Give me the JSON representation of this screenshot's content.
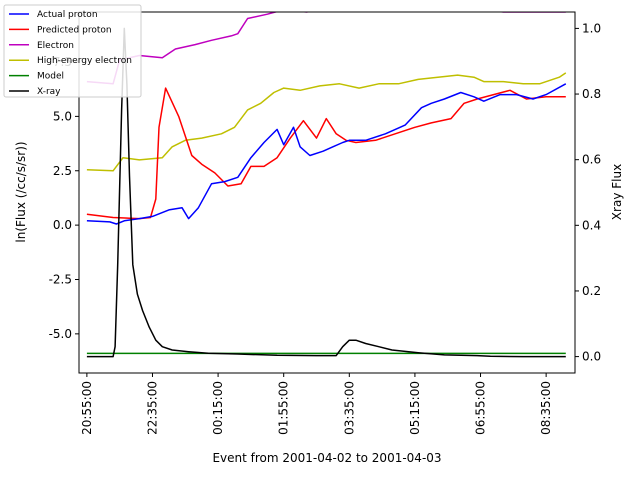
{
  "chart_data": {
    "type": "line",
    "xlabel": "Event from 2001-04-02 to 2001-04-03",
    "ylabel": "ln(Flux (/cc/s/sr))",
    "y2label": "Xray Flux",
    "xlim": [
      "2001-04-02 20:43",
      "2001-04-03 09:19"
    ],
    "ylim": [
      -6.8,
      9.8
    ],
    "y2lim": [
      -0.05,
      1.05
    ],
    "x_ticks": [
      "20:55:00",
      "22:35:00",
      "00:15:00",
      "01:55:00",
      "03:35:00",
      "05:15:00",
      "06:55:00",
      "08:35:00"
    ],
    "y_ticks": [
      "-5.0",
      "-2.5",
      "0.0",
      "2.5",
      "5.0",
      "7.5"
    ],
    "y2_ticks": [
      "0.0",
      "0.2",
      "0.4",
      "0.6",
      "0.8",
      "1.0"
    ],
    "legend_placement": "top-left",
    "series": [
      {
        "name": "Actual proton",
        "color": "#0000ff",
        "axis": "left",
        "x": [
          "2001-04-02 20:55",
          "2001-04-02 21:30",
          "2001-04-02 21:40",
          "2001-04-02 21:52",
          "2001-04-02 22:15",
          "2001-04-02 22:35",
          "2001-04-02 23:00",
          "2001-04-02 23:20",
          "2001-04-02 23:30",
          "2001-04-02 23:45",
          "2001-04-03 00:05",
          "2001-04-03 00:25",
          "2001-04-03 00:45",
          "2001-04-03 01:05",
          "2001-04-03 01:25",
          "2001-04-03 01:45",
          "2001-04-03 01:55",
          "2001-04-03 02:10",
          "2001-04-03 02:20",
          "2001-04-03 02:35",
          "2001-04-03 02:55",
          "2001-04-03 03:10",
          "2001-04-03 03:25",
          "2001-04-03 03:35",
          "2001-04-03 04:00",
          "2001-04-03 04:30",
          "2001-04-03 05:00",
          "2001-04-03 05:25",
          "2001-04-03 05:40",
          "2001-04-03 06:00",
          "2001-04-03 06:25",
          "2001-04-03 06:45",
          "2001-04-03 07:00",
          "2001-04-03 07:25",
          "2001-04-03 07:50",
          "2001-04-03 08:15",
          "2001-04-03 08:35",
          "2001-04-03 09:05"
        ],
        "values": [
          0.2,
          0.15,
          0.05,
          0.2,
          0.3,
          0.4,
          0.7,
          0.8,
          0.3,
          0.8,
          1.9,
          2.0,
          2.2,
          3.1,
          3.8,
          4.4,
          3.7,
          4.5,
          3.6,
          3.2,
          3.4,
          3.6,
          3.8,
          3.9,
          3.9,
          4.2,
          4.6,
          5.4,
          5.6,
          5.8,
          6.1,
          5.9,
          5.7,
          6.0,
          6.0,
          5.8,
          6.0,
          6.5
        ]
      },
      {
        "name": "Predicted proton",
        "color": "#ff0000",
        "axis": "left",
        "x": [
          "2001-04-02 20:55",
          "2001-04-02 21:35",
          "2001-04-02 22:15",
          "2001-04-02 22:32",
          "2001-04-02 22:40",
          "2001-04-02 22:45",
          "2001-04-02 22:55",
          "2001-04-02 23:15",
          "2001-04-02 23:35",
          "2001-04-02 23:50",
          "2001-04-03 00:10",
          "2001-04-03 00:30",
          "2001-04-03 00:50",
          "2001-04-03 01:05",
          "2001-04-03 01:25",
          "2001-04-03 01:45",
          "2001-04-03 02:05",
          "2001-04-03 02:25",
          "2001-04-03 02:45",
          "2001-04-03 03:00",
          "2001-04-03 03:15",
          "2001-04-03 03:30",
          "2001-04-03 03:45",
          "2001-04-03 04:15",
          "2001-04-03 04:45",
          "2001-04-03 05:15",
          "2001-04-03 05:40",
          "2001-04-03 06:10",
          "2001-04-03 06:30",
          "2001-04-03 06:50",
          "2001-04-03 07:15",
          "2001-04-03 07:40",
          "2001-04-03 08:05",
          "2001-04-03 08:35",
          "2001-04-03 09:05"
        ],
        "values": [
          0.5,
          0.35,
          0.3,
          0.35,
          1.2,
          4.5,
          6.3,
          5.0,
          3.2,
          2.8,
          2.4,
          1.8,
          1.9,
          2.7,
          2.7,
          3.1,
          4.0,
          4.8,
          4.0,
          4.9,
          4.2,
          3.9,
          3.8,
          3.9,
          4.2,
          4.5,
          4.7,
          4.9,
          5.6,
          5.8,
          6.0,
          6.2,
          5.8,
          5.9,
          5.9
        ]
      },
      {
        "name": "Electron",
        "color": "#bf00bf",
        "axis": "left",
        "x": [
          "2001-04-02 20:55",
          "2001-04-02 21:35",
          "2001-04-02 21:45",
          "2001-04-02 22:15",
          "2001-04-02 22:50",
          "2001-04-02 23:10",
          "2001-04-02 23:40",
          "2001-04-03 00:05",
          "2001-04-03 00:35",
          "2001-04-03 00:45",
          "2001-04-03 01:00",
          "2001-04-03 01:30",
          "2001-04-03 01:55",
          "2001-04-03 02:30",
          "2001-04-03 03:00",
          "2001-04-03 03:30",
          "2001-04-03 04:00",
          "2001-04-03 04:30",
          "2001-04-03 05:00",
          "2001-04-03 05:30",
          "2001-04-03 06:00",
          "2001-04-03 06:30",
          "2001-04-03 07:00",
          "2001-04-03 07:30",
          "2001-04-03 08:00",
          "2001-04-03 08:35",
          "2001-04-03 09:05"
        ],
        "values": [
          6.6,
          6.5,
          7.6,
          7.8,
          7.7,
          8.1,
          8.3,
          8.5,
          8.7,
          8.8,
          9.5,
          9.7,
          9.9,
          9.8,
          10.0,
          10.0,
          9.9,
          10.1,
          10.0,
          9.9,
          9.9,
          10.0,
          9.9,
          9.8,
          9.8,
          9.8,
          9.8
        ]
      },
      {
        "name": "High-energy electron",
        "color": "#bfbf00",
        "axis": "left",
        "x": [
          "2001-04-02 20:55",
          "2001-04-02 21:35",
          "2001-04-02 21:50",
          "2001-04-02 22:15",
          "2001-04-02 22:50",
          "2001-04-02 23:05",
          "2001-04-02 23:25",
          "2001-04-02 23:50",
          "2001-04-03 00:20",
          "2001-04-03 00:40",
          "2001-04-03 01:00",
          "2001-04-03 01:20",
          "2001-04-03 01:40",
          "2001-04-03 01:55",
          "2001-04-03 02:20",
          "2001-04-03 02:50",
          "2001-04-03 03:20",
          "2001-04-03 03:50",
          "2001-04-03 04:20",
          "2001-04-03 04:50",
          "2001-04-03 05:20",
          "2001-04-03 05:50",
          "2001-04-03 06:20",
          "2001-04-03 06:45",
          "2001-04-03 07:00",
          "2001-04-03 07:30",
          "2001-04-03 08:00",
          "2001-04-03 08:25",
          "2001-04-03 08:55",
          "2001-04-03 09:05"
        ],
        "values": [
          2.55,
          2.5,
          3.1,
          3.0,
          3.1,
          3.6,
          3.9,
          4.0,
          4.2,
          4.5,
          5.3,
          5.6,
          6.1,
          6.3,
          6.2,
          6.4,
          6.5,
          6.3,
          6.5,
          6.5,
          6.7,
          6.8,
          6.9,
          6.8,
          6.6,
          6.6,
          6.5,
          6.5,
          6.8,
          7.0
        ]
      },
      {
        "name": "Model",
        "color": "#008000",
        "axis": "left",
        "x": [
          "2001-04-02 20:55",
          "2001-04-03 09:05"
        ],
        "values": [
          -5.9,
          -5.9
        ]
      },
      {
        "name": "X-ray",
        "color": "#000000",
        "axis": "right",
        "x": [
          "2001-04-02 20:55",
          "2001-04-02 21:35",
          "2001-04-02 21:38",
          "2001-04-02 21:42",
          "2001-04-02 21:48",
          "2001-04-02 21:52",
          "2001-04-02 21:56",
          "2001-04-02 22:00",
          "2001-04-02 22:05",
          "2001-04-02 22:12",
          "2001-04-02 22:20",
          "2001-04-02 22:30",
          "2001-04-02 22:40",
          "2001-04-02 22:50",
          "2001-04-02 23:05",
          "2001-04-02 23:30",
          "2001-04-03 00:00",
          "2001-04-03 00:45",
          "2001-04-03 01:45",
          "2001-04-03 02:45",
          "2001-04-03 03:15",
          "2001-04-03 03:25",
          "2001-04-03 03:35",
          "2001-04-03 03:45",
          "2001-04-03 04:00",
          "2001-04-03 04:20",
          "2001-04-03 04:40",
          "2001-04-03 05:20",
          "2001-04-03 06:00",
          "2001-04-03 06:50",
          "2001-04-03 07:10",
          "2001-04-03 08:00",
          "2001-04-03 09:05"
        ],
        "values": [
          0.0,
          0.0,
          0.03,
          0.28,
          0.75,
          1.0,
          0.83,
          0.55,
          0.28,
          0.19,
          0.14,
          0.09,
          0.05,
          0.03,
          0.02,
          0.015,
          0.01,
          0.008,
          0.004,
          0.003,
          0.003,
          0.03,
          0.05,
          0.05,
          0.04,
          0.03,
          0.02,
          0.012,
          0.005,
          0.003,
          0.001,
          0.0,
          0.0
        ]
      }
    ]
  }
}
